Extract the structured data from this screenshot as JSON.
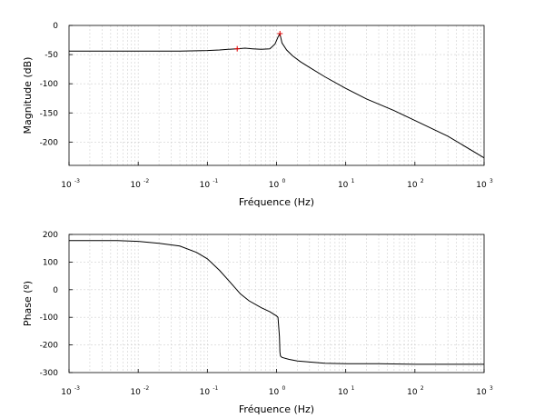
{
  "chart_data": [
    {
      "type": "line",
      "title": "",
      "xlabel": "Fréquence (Hz)",
      "ylabel": "Magnitude (dB)",
      "xscale": "log",
      "xlim": [
        0.001,
        1000
      ],
      "ylim": [
        -240,
        0
      ],
      "xticks": [
        {
          "base": "10",
          "exp": "-3"
        },
        {
          "base": "10",
          "exp": "-2"
        },
        {
          "base": "10",
          "exp": "-1"
        },
        {
          "base": "10",
          "exp": "0"
        },
        {
          "base": "10",
          "exp": "1"
        },
        {
          "base": "10",
          "exp": "2"
        },
        {
          "base": "10",
          "exp": "3"
        }
      ],
      "yticks": [
        "0",
        "-50",
        "-100",
        "-150",
        "-200"
      ],
      "ytick_values": [
        0,
        -50,
        -100,
        -150,
        -200
      ],
      "grid": true,
      "series": [
        {
          "color": "#000000",
          "x": [
            0.001,
            0.01,
            0.04,
            0.1,
            0.15,
            0.2,
            0.27,
            0.35,
            0.45,
            0.6,
            0.8,
            0.95,
            1.05,
            1.12,
            1.2,
            1.4,
            1.7,
            2.2,
            3,
            5,
            10,
            20,
            30,
            50,
            100,
            300,
            1000
          ],
          "y": [
            -44,
            -44,
            -44,
            -43,
            -42,
            -41,
            -40,
            -39,
            -40,
            -41,
            -40,
            -32,
            -20,
            -14,
            -30,
            -42,
            -52,
            -62,
            -72,
            -88,
            -108,
            -126,
            -135,
            -146,
            -163,
            -190,
            -227
          ]
        }
      ],
      "markers": [
        {
          "x": 0.27,
          "y": -40,
          "color": "#e00000"
        },
        {
          "x": 1.12,
          "y": -14,
          "color": "#e00000"
        }
      ]
    },
    {
      "type": "line",
      "title": "",
      "xlabel": "Fréquence (Hz)",
      "ylabel": "Phase (º)",
      "xscale": "log",
      "xlim": [
        0.001,
        1000
      ],
      "ylim": [
        -300,
        200
      ],
      "xticks": [
        {
          "base": "10",
          "exp": "-3"
        },
        {
          "base": "10",
          "exp": "-2"
        },
        {
          "base": "10",
          "exp": "-1"
        },
        {
          "base": "10",
          "exp": "0"
        },
        {
          "base": "10",
          "exp": "1"
        },
        {
          "base": "10",
          "exp": "2"
        },
        {
          "base": "10",
          "exp": "3"
        }
      ],
      "yticks": [
        "200",
        "100",
        "0",
        "-100",
        "-200",
        "-300"
      ],
      "ytick_values": [
        200,
        100,
        0,
        -100,
        -200,
        -300
      ],
      "grid": true,
      "series": [
        {
          "color": "#000000",
          "x": [
            0.001,
            0.005,
            0.01,
            0.02,
            0.04,
            0.07,
            0.1,
            0.15,
            0.2,
            0.3,
            0.4,
            0.6,
            0.8,
            1.0,
            1.05,
            1.1,
            1.12,
            1.14,
            1.2,
            1.5,
            2,
            3,
            5,
            10,
            30,
            100,
            1000
          ],
          "y": [
            178,
            178,
            175,
            168,
            158,
            135,
            112,
            70,
            35,
            -15,
            -40,
            -65,
            -80,
            -95,
            -100,
            -170,
            -225,
            -240,
            -245,
            -252,
            -258,
            -262,
            -266,
            -268,
            -268,
            -270,
            -270
          ]
        }
      ],
      "markers": []
    }
  ]
}
